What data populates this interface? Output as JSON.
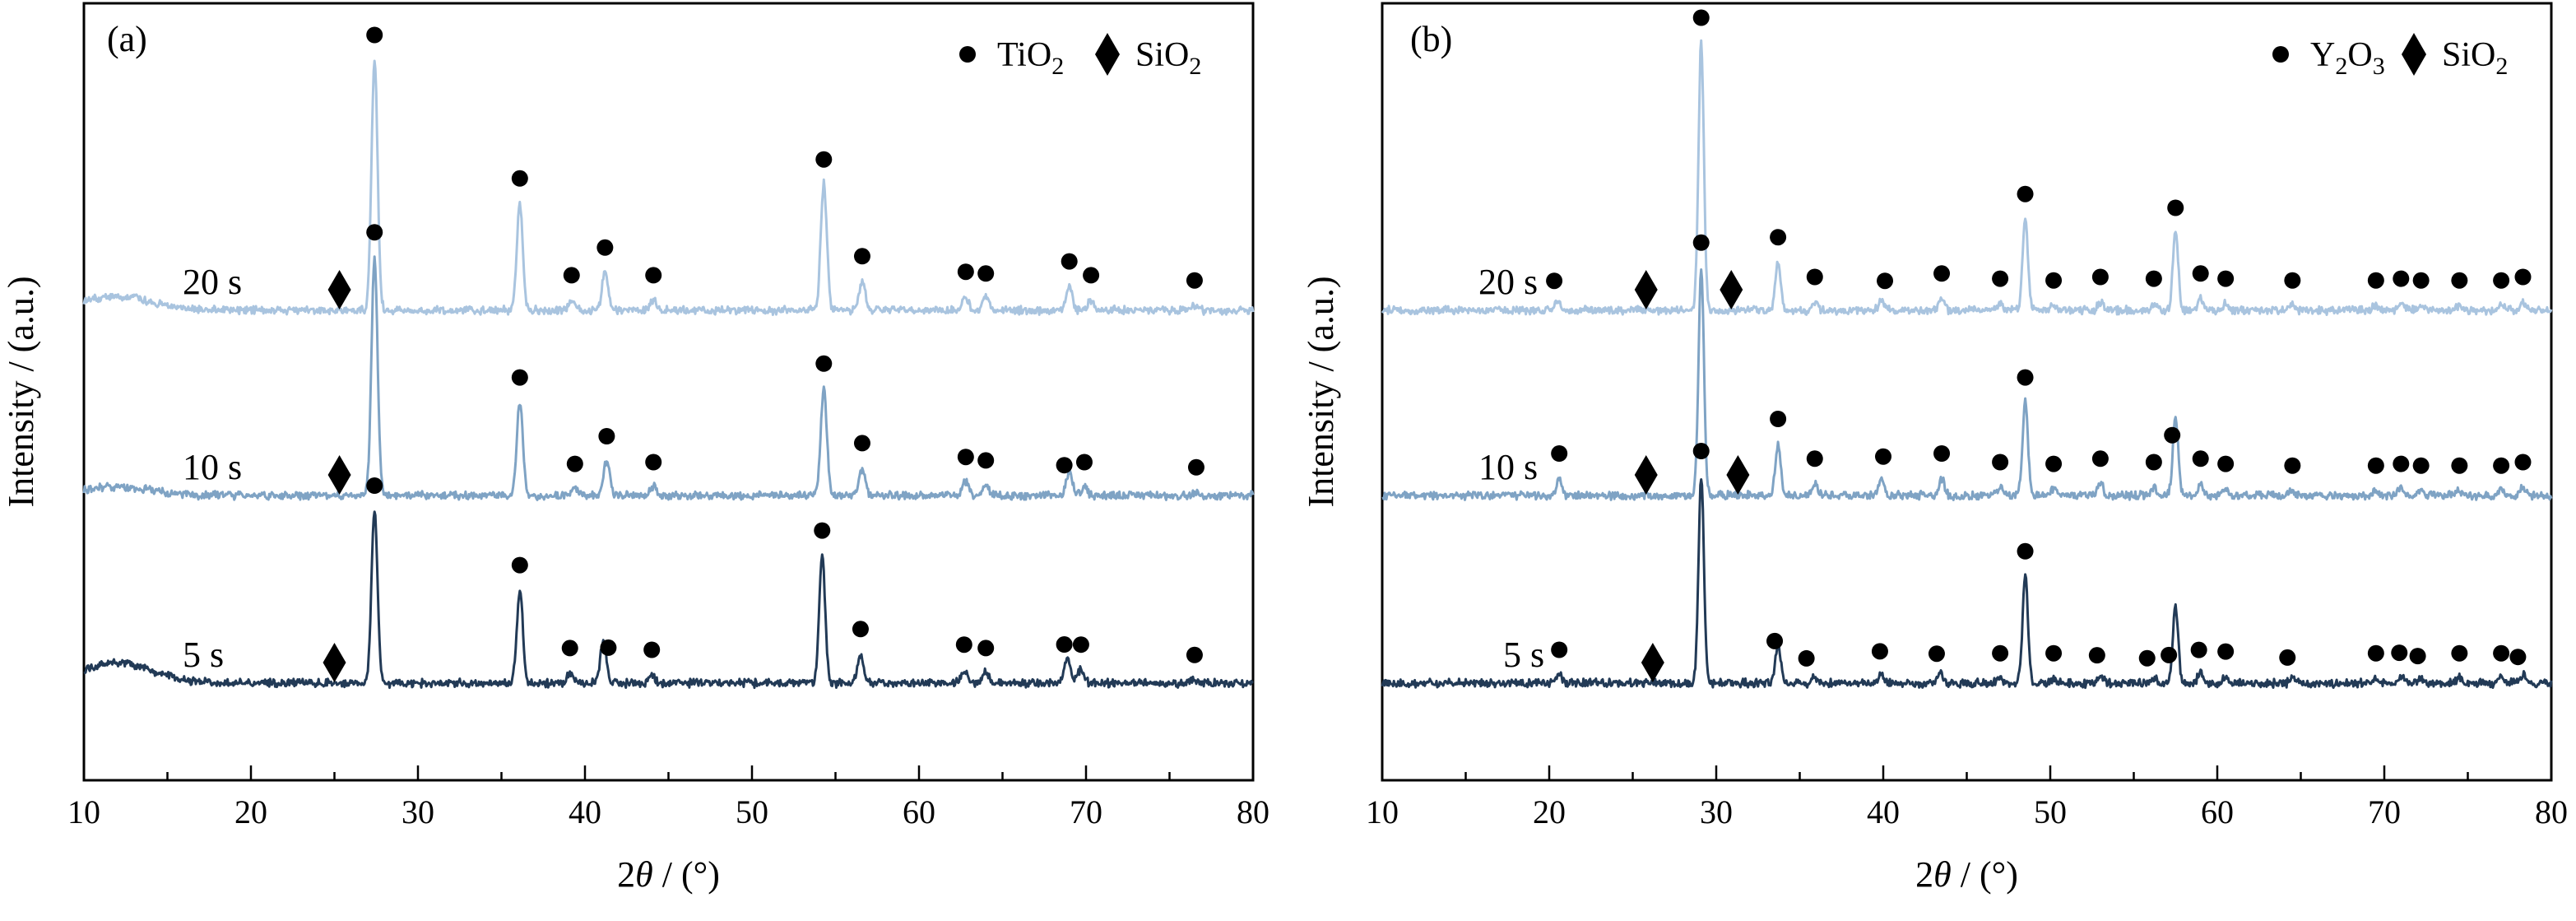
{
  "chart_data": [
    {
      "type": "line",
      "panel_label": "(a)",
      "xlabel_prefix": "2",
      "xlabel_symbol": "θ",
      "xlabel_suffix": " / (°)",
      "ylabel": "Intensity / (a.u.)",
      "xlim": [
        10,
        80
      ],
      "xticks": [
        "10",
        "20",
        "30",
        "40",
        "50",
        "60",
        "70",
        "80"
      ],
      "grid": false,
      "legend_placement": "top-right",
      "legend": [
        {
          "marker": "circle",
          "text": "TiO",
          "sub": "2"
        },
        {
          "marker": "diamond",
          "text": "SiO",
          "sub": "2"
        }
      ],
      "series": [
        {
          "name": "20 s",
          "color": "#a9c4df",
          "offset": 2.2,
          "baseline_hump": 0.08,
          "peaks": [
            [
              27.4,
              1.45
            ],
            [
              36.1,
              0.62
            ],
            [
              39.2,
              0.06
            ],
            [
              41.2,
              0.22
            ],
            [
              44.1,
              0.06
            ],
            [
              54.3,
              0.73
            ],
            [
              56.6,
              0.17
            ],
            [
              62.8,
              0.08
            ],
            [
              64.0,
              0.07
            ],
            [
              69.0,
              0.14
            ],
            [
              70.3,
              0.06
            ],
            [
              76.5,
              0.03
            ]
          ],
          "markers": [
            {
              "type": "circle",
              "x": [
                27.4,
                36.1,
                39.2,
                41.2,
                44.1,
                54.3,
                56.6,
                62.8,
                64.0,
                69.0,
                70.3,
                76.5
              ]
            },
            {
              "type": "diamond",
              "x": [
                25.3
              ]
            }
          ]
        },
        {
          "name": "10 s",
          "color": "#7fa3c4",
          "offset": 1.1,
          "baseline_hump": 0.05,
          "peaks": [
            [
              27.4,
              1.38
            ],
            [
              36.1,
              0.54
            ],
            [
              39.4,
              0.04
            ],
            [
              41.3,
              0.2
            ],
            [
              44.1,
              0.05
            ],
            [
              54.3,
              0.62
            ],
            [
              56.6,
              0.16
            ],
            [
              62.8,
              0.08
            ],
            [
              64.0,
              0.06
            ],
            [
              69.0,
              0.13
            ],
            [
              69.9,
              0.05
            ],
            [
              76.6,
              0.02
            ]
          ],
          "markers": [
            {
              "type": "circle",
              "x": [
                27.4,
                36.1,
                39.4,
                41.3,
                44.1,
                54.3,
                56.6,
                62.8,
                64.0,
                68.7,
                69.9,
                76.6
              ]
            },
            {
              "type": "diamond",
              "x": [
                25.3
              ]
            }
          ]
        },
        {
          "name": "5 s",
          "color": "#223a56",
          "offset": 0.0,
          "baseline_hump": 0.12,
          "peaks": [
            [
              27.4,
              1.0
            ],
            [
              36.1,
              0.54
            ],
            [
              39.1,
              0.06
            ],
            [
              41.1,
              0.25
            ],
            [
              44.0,
              0.05
            ],
            [
              54.2,
              0.74
            ],
            [
              56.5,
              0.17
            ],
            [
              62.7,
              0.08
            ],
            [
              64.0,
              0.06
            ],
            [
              68.9,
              0.15
            ],
            [
              69.7,
              0.08
            ],
            [
              76.5,
              0.02
            ]
          ],
          "markers": [
            {
              "type": "circle",
              "x": [
                27.4,
                36.1,
                39.1,
                41.4,
                44.0,
                54.2,
                56.5,
                62.7,
                64.0,
                68.7,
                69.7,
                76.5
              ]
            },
            {
              "type": "diamond",
              "x": [
                25.0
              ]
            }
          ]
        }
      ]
    },
    {
      "type": "line",
      "panel_label": "(b)",
      "xlabel_prefix": "2",
      "xlabel_symbol": "θ",
      "xlabel_suffix": " / (°)",
      "ylabel": "Intensity / (a.u.)",
      "xlim": [
        10,
        80
      ],
      "xticks": [
        "10",
        "20",
        "30",
        "40",
        "50",
        "60",
        "70",
        "80"
      ],
      "grid": false,
      "legend_placement": "top-right",
      "legend": [
        {
          "marker": "circle",
          "text": "Y",
          "sub": "2",
          "text2": "O",
          "sub2": "3"
        },
        {
          "marker": "diamond",
          "text": "SiO",
          "sub": "2"
        }
      ],
      "series": [
        {
          "name": "20 s",
          "color": "#a9c4df",
          "offset": 2.2,
          "baseline_hump": 0.0,
          "peaks": [
            [
              20.5,
              0.06
            ],
            [
              29.1,
              1.55
            ],
            [
              33.7,
              0.28
            ],
            [
              35.9,
              0.05
            ],
            [
              39.9,
              0.06
            ],
            [
              43.5,
              0.07
            ],
            [
              47.0,
              0.04
            ],
            [
              48.5,
              0.53
            ],
            [
              50.2,
              0.03
            ],
            [
              53.0,
              0.05
            ],
            [
              56.2,
              0.04
            ],
            [
              57.5,
              0.45
            ],
            [
              59.0,
              0.07
            ],
            [
              60.5,
              0.04
            ],
            [
              64.5,
              0.03
            ],
            [
              69.5,
              0.03
            ],
            [
              71.0,
              0.04
            ],
            [
              72.2,
              0.03
            ],
            [
              74.5,
              0.03
            ],
            [
              77.0,
              0.03
            ],
            [
              78.3,
              0.05
            ]
          ],
          "markers": [
            {
              "type": "circle",
              "x": [
                20.3,
                29.1,
                33.7,
                35.9,
                40.1,
                43.5,
                47.0,
                48.5,
                50.2,
                53.0,
                56.2,
                57.5,
                59.0,
                60.5,
                64.5,
                69.5,
                71.0,
                72.2,
                74.5,
                77.0,
                78.3
              ]
            },
            {
              "type": "diamond",
              "x": [
                25.8,
                30.9
              ]
            }
          ]
        },
        {
          "name": "10 s",
          "color": "#7fa3c4",
          "offset": 1.1,
          "baseline_hump": 0.0,
          "peaks": [
            [
              20.6,
              0.1
            ],
            [
              29.1,
              1.32
            ],
            [
              33.7,
              0.3
            ],
            [
              35.9,
              0.07
            ],
            [
              39.9,
              0.1
            ],
            [
              43.5,
              0.1
            ],
            [
              47.0,
              0.05
            ],
            [
              48.5,
              0.54
            ],
            [
              50.2,
              0.04
            ],
            [
              53.0,
              0.07
            ],
            [
              56.2,
              0.05
            ],
            [
              57.5,
              0.45
            ],
            [
              59.0,
              0.07
            ],
            [
              60.5,
              0.04
            ],
            [
              64.5,
              0.03
            ],
            [
              69.5,
              0.03
            ],
            [
              71.0,
              0.04
            ],
            [
              72.2,
              0.03
            ],
            [
              74.5,
              0.03
            ],
            [
              77.0,
              0.03
            ],
            [
              78.3,
              0.05
            ]
          ],
          "markers": [
            {
              "type": "circle",
              "x": [
                20.6,
                29.1,
                33.7,
                35.9,
                40.0,
                43.5,
                47.0,
                48.5,
                50.2,
                53.0,
                56.2,
                57.3,
                59.0,
                60.5,
                64.5,
                69.5,
                71.0,
                72.2,
                74.5,
                77.0,
                78.3
              ]
            },
            {
              "type": "diamond",
              "x": [
                25.8,
                31.3
              ]
            }
          ]
        },
        {
          "name": "5 s",
          "color": "#223a56",
          "offset": 0.0,
          "baseline_hump": 0.0,
          "peaks": [
            [
              20.6,
              0.05
            ],
            [
              29.1,
              1.2
            ],
            [
              33.7,
              0.22
            ],
            [
              35.9,
              0.04
            ],
            [
              39.9,
              0.05
            ],
            [
              43.4,
              0.06
            ],
            [
              47.0,
              0.03
            ],
            [
              48.5,
              0.62
            ],
            [
              50.2,
              0.03
            ],
            [
              53.0,
              0.04
            ],
            [
              56.2,
              0.03
            ],
            [
              57.5,
              0.45
            ],
            [
              59.0,
              0.06
            ],
            [
              60.5,
              0.04
            ],
            [
              64.5,
              0.03
            ],
            [
              69.5,
              0.03
            ],
            [
              71.0,
              0.04
            ],
            [
              72.2,
              0.03
            ],
            [
              74.5,
              0.03
            ],
            [
              77.0,
              0.03
            ],
            [
              78.3,
              0.05
            ]
          ],
          "markers": [
            {
              "type": "circle",
              "x": [
                20.6,
                29.1,
                33.5,
                35.4,
                39.8,
                43.2,
                47.0,
                48.5,
                50.2,
                52.8,
                55.8,
                57.1,
                58.9,
                60.5,
                64.2,
                69.5,
                70.9,
                72.0,
                74.5,
                77.0,
                78.0
              ]
            },
            {
              "type": "diamond",
              "x": [
                26.2
              ]
            }
          ]
        }
      ]
    }
  ]
}
